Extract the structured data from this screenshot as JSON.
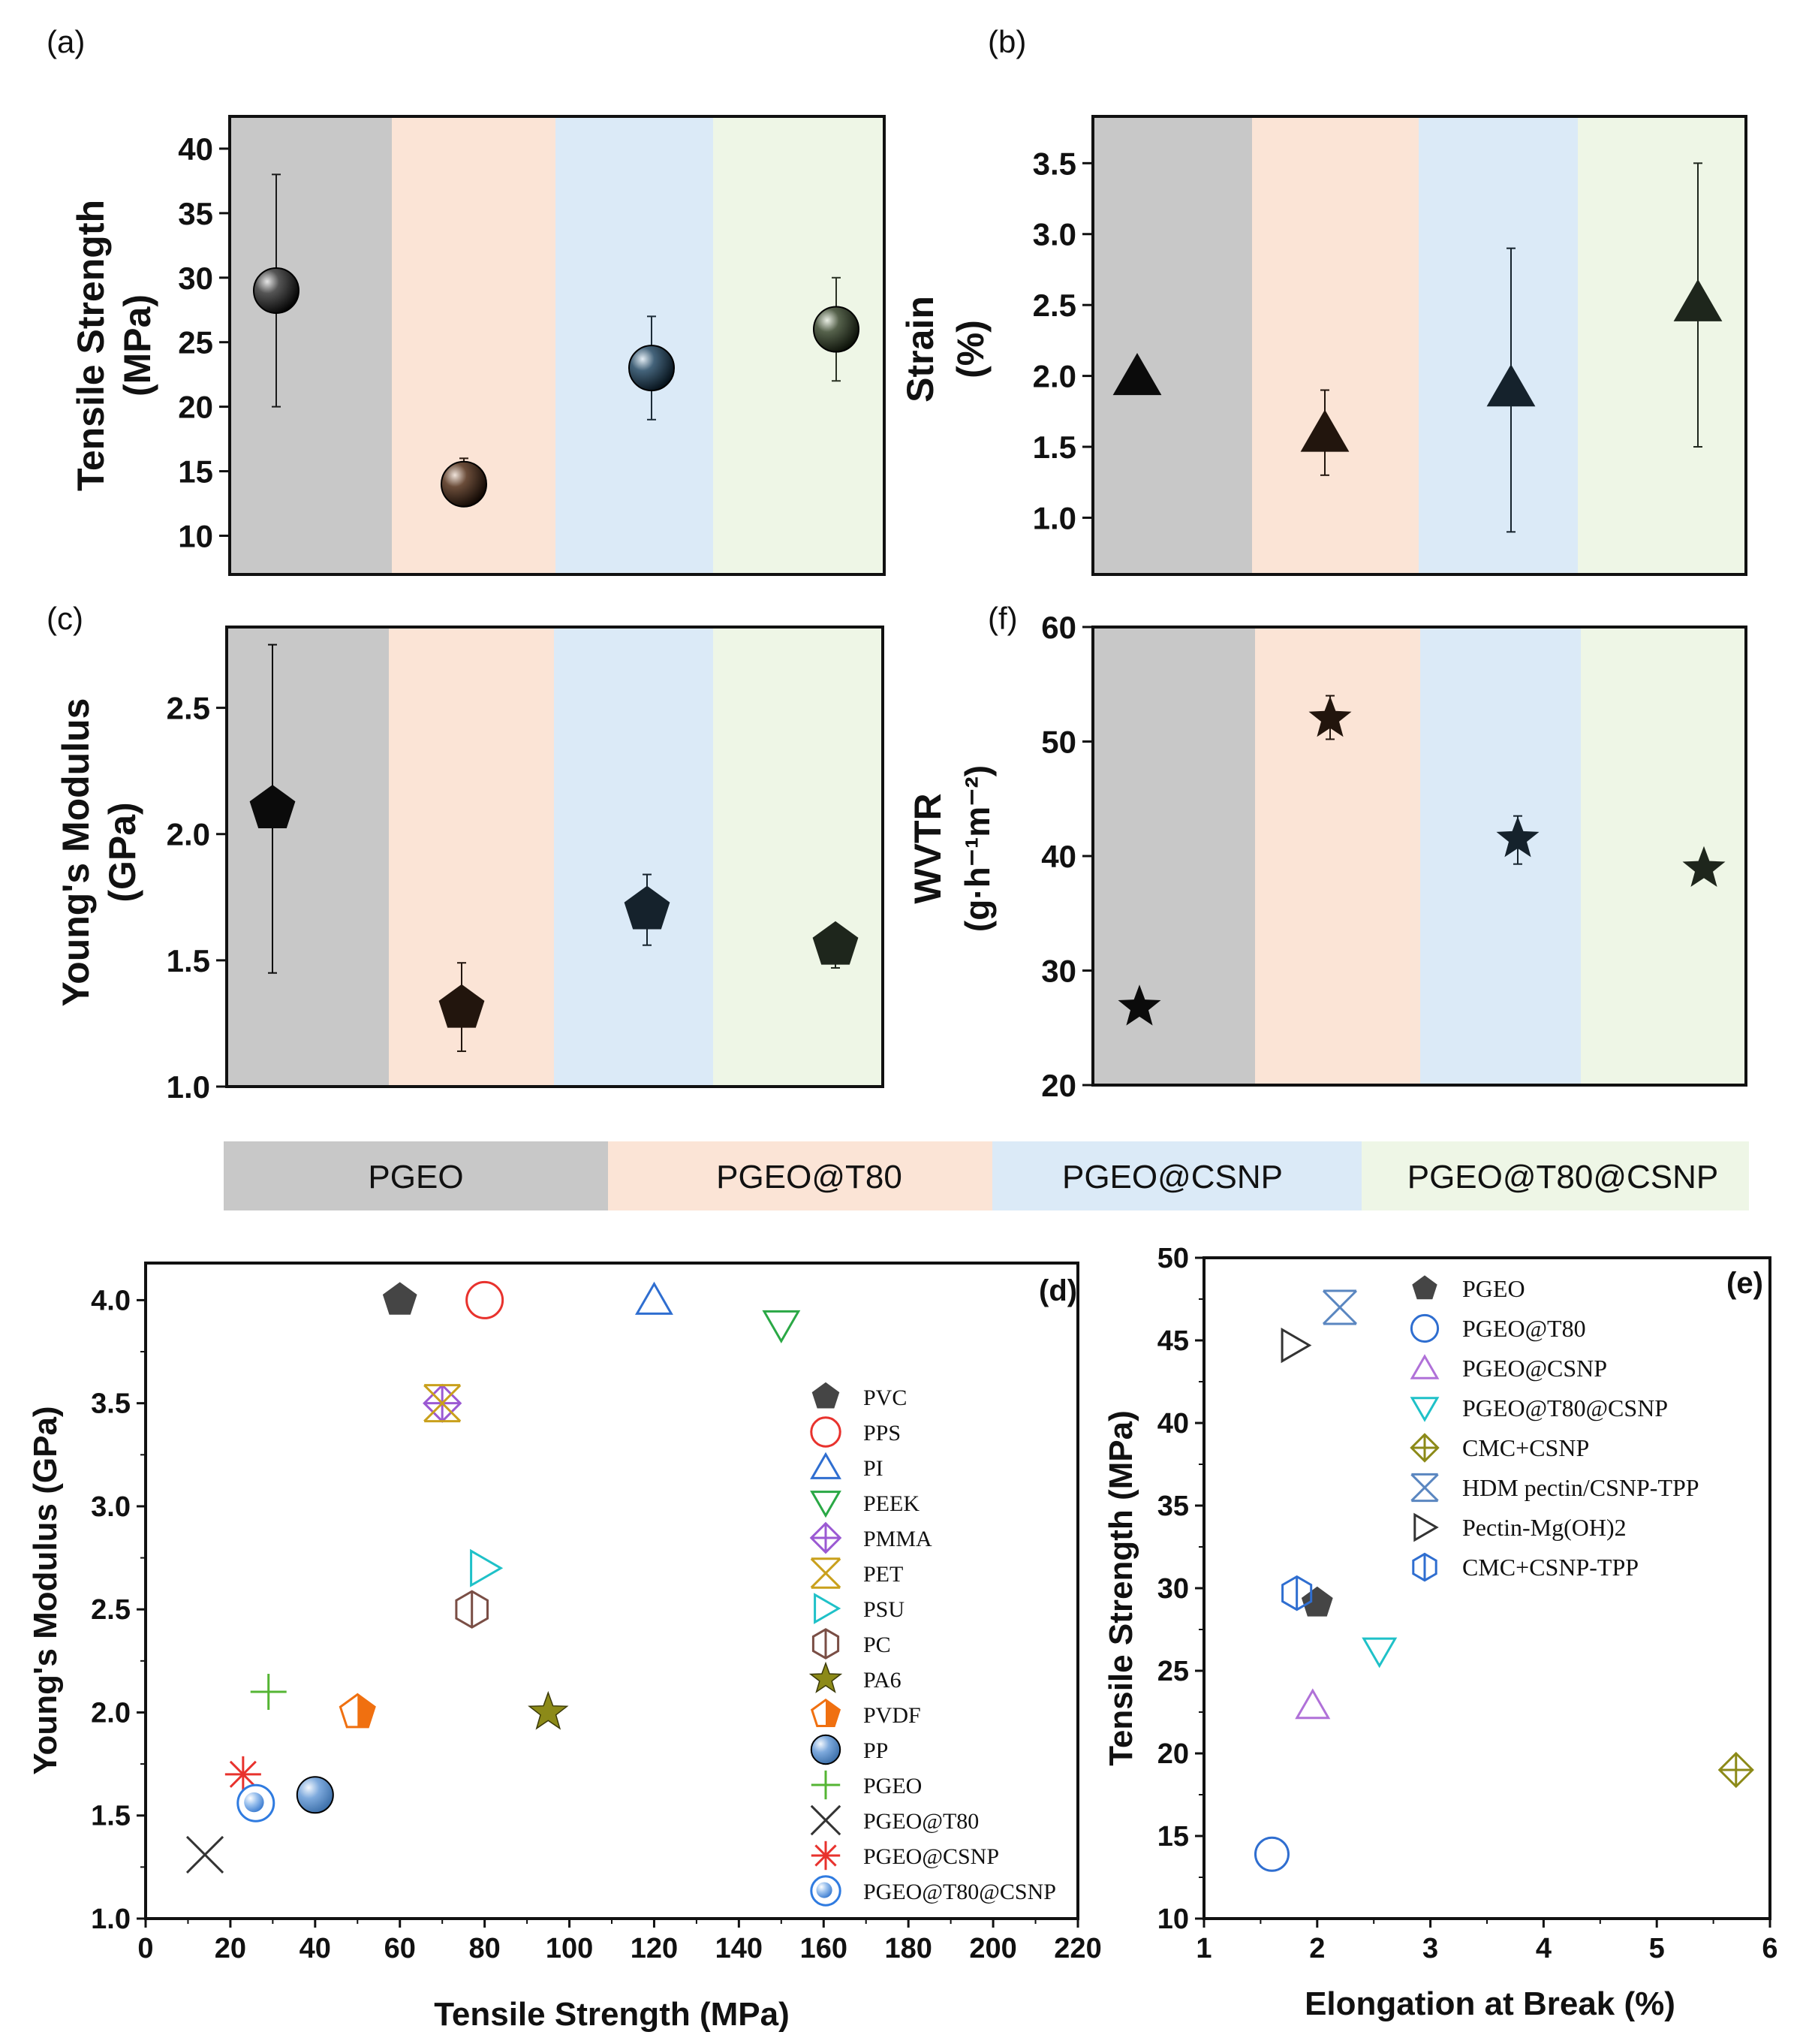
{
  "colors": {
    "band_pgeo": "#c8c8c8",
    "band_t80": "#fbe4d6",
    "band_csnp": "#dbeaf7",
    "band_t80csnp": "#eef6e6"
  },
  "category_bar": {
    "labels": [
      "PGEO",
      "PGEO@T80",
      "PGEO@CSNP",
      "PGEO@T80@CSNP"
    ]
  },
  "chart_data": [
    {
      "id": "a",
      "panel_label": "(a)",
      "type": "scatter",
      "categories": [
        "PGEO",
        "PGEO@T80",
        "PGEO@CSNP",
        "PGEO@T80@CSNP"
      ],
      "ylabel_line1": "Tensile Strength",
      "ylabel_line2": "(MPa)",
      "ylim": [
        7,
        42.5
      ],
      "yticks": [
        10,
        15,
        20,
        25,
        30,
        35,
        40
      ],
      "values": [
        29,
        14,
        23,
        26
      ],
      "error_low": [
        20,
        12.5,
        19,
        22
      ],
      "error_high": [
        38,
        16,
        27,
        30
      ],
      "marker": "sphere",
      "marker_colors": [
        "#1a1a1a",
        "#2a1a10",
        "#1c2c38",
        "#2a3224"
      ]
    },
    {
      "id": "b",
      "panel_label": "(b)",
      "type": "scatter",
      "categories": [
        "PGEO",
        "PGEO@T80",
        "PGEO@CSNP",
        "PGEO@T80@CSNP"
      ],
      "ylabel_line1": "Strain",
      "ylabel_line2": "(%)",
      "ylim": [
        0.6,
        3.83
      ],
      "yticks": [
        1.0,
        1.5,
        2.0,
        2.5,
        3.0,
        3.5
      ],
      "values": [
        2.0,
        1.6,
        1.92,
        2.52
      ],
      "error_low": [
        2.0,
        1.3,
        0.9,
        1.5
      ],
      "error_high": [
        2.0,
        1.9,
        2.9,
        3.5
      ],
      "marker": "triangle",
      "marker_colors": [
        "#0b0b0b",
        "#22150d",
        "#15222c",
        "#1e261c"
      ]
    },
    {
      "id": "c",
      "panel_label": "(c)",
      "type": "scatter",
      "categories": [
        "PGEO",
        "PGEO@T80",
        "PGEO@CSNP",
        "PGEO@T80@CSNP"
      ],
      "ylabel_line1": "Young's Modulus",
      "ylabel_line2": "(GPa)",
      "ylim": [
        1.0,
        2.82
      ],
      "yticks": [
        1.0,
        1.5,
        2.0,
        2.5
      ],
      "values": [
        2.1,
        1.31,
        1.7,
        1.56
      ],
      "error_low": [
        1.45,
        1.14,
        1.56,
        1.47
      ],
      "error_high": [
        2.75,
        1.49,
        1.84,
        1.62
      ],
      "marker": "pentagon",
      "marker_colors": [
        "#0b0b0b",
        "#22150d",
        "#15222c",
        "#1e261c"
      ]
    },
    {
      "id": "f",
      "panel_label": "(f)",
      "type": "scatter",
      "categories": [
        "PGEO",
        "PGEO@T80",
        "PGEO@CSNP",
        "PGEO@T80@CSNP"
      ],
      "ylabel_line1": "WVTR",
      "ylabel_line2": "(g·h⁻¹m⁻²)",
      "ylim": [
        20,
        60
      ],
      "yticks": [
        20,
        30,
        40,
        50,
        60
      ],
      "values": [
        26.8,
        52,
        41.5,
        38.9
      ],
      "error_low": [
        26.8,
        50.2,
        39.3,
        38.9
      ],
      "error_high": [
        26.8,
        54,
        43.5,
        38.9
      ],
      "marker": "star",
      "marker_colors": [
        "#0b0b0b",
        "#22150d",
        "#15222c",
        "#1e261c"
      ]
    },
    {
      "id": "d",
      "panel_label": "(d)",
      "type": "scatter",
      "xlabel": "Tensile Strength (MPa)",
      "ylabel": "Young's Modulus (GPa)",
      "xlim": [
        0,
        220
      ],
      "ylim": [
        1.0,
        4.18
      ],
      "xticks": [
        0,
        20,
        40,
        60,
        80,
        100,
        120,
        140,
        160,
        180,
        200,
        220
      ],
      "yticks": [
        1.0,
        1.5,
        2.0,
        2.5,
        3.0,
        3.5,
        4.0
      ],
      "series": [
        {
          "name": "PVC",
          "x": 60,
          "y": 4.0,
          "marker": "pentagon_fill",
          "color": "#454545"
        },
        {
          "name": "PPS",
          "x": 80,
          "y": 4.0,
          "marker": "circle_open",
          "color": "#e8322d"
        },
        {
          "name": "PI",
          "x": 120,
          "y": 4.0,
          "marker": "triangle_up_open",
          "color": "#2f6ed0"
        },
        {
          "name": "PEEK",
          "x": 150,
          "y": 3.88,
          "marker": "triangle_down_open",
          "color": "#2aa845"
        },
        {
          "name": "PMMA",
          "x": 70,
          "y": 3.5,
          "marker": "diamond_cross",
          "color": "#9b59d3"
        },
        {
          "name": "PET",
          "x": 70,
          "y": 3.5,
          "marker": "x_bar",
          "color": "#c9a01c"
        },
        {
          "name": "PSU",
          "x": 80,
          "y": 2.7,
          "marker": "triangle_right_open",
          "color": "#1fc1c8"
        },
        {
          "name": "PC",
          "x": 77,
          "y": 2.5,
          "marker": "hexagon_open",
          "color": "#7a4e45"
        },
        {
          "name": "PA6",
          "x": 95,
          "y": 2.0,
          "marker": "star_fill",
          "color": "#8c8a18"
        },
        {
          "name": "PVDF",
          "x": 50,
          "y": 2.0,
          "marker": "pentagon_half",
          "color": "#f07010"
        },
        {
          "name": "PP",
          "x": 40,
          "y": 1.6,
          "marker": "sphere",
          "color": "#6e9fd6"
        },
        {
          "name": "PGEO",
          "x": 29,
          "y": 2.1,
          "marker": "plus",
          "color": "#55b534"
        },
        {
          "name": "PGEO@T80",
          "x": 14,
          "y": 1.31,
          "marker": "x",
          "color": "#333333"
        },
        {
          "name": "PGEO@CSNP",
          "x": 23,
          "y": 1.7,
          "marker": "asterisk",
          "color": "#e8322d"
        },
        {
          "name": "PGEO@T80@CSNP",
          "x": 26,
          "y": 1.56,
          "marker": "circle_sphere",
          "color": "#2f7be0"
        }
      ]
    },
    {
      "id": "e",
      "panel_label": "(e)",
      "type": "scatter",
      "xlabel": "Elongation at Break (%)",
      "ylabel": "Tensile Strength (MPa)",
      "xlim": [
        1,
        6
      ],
      "ylim": [
        10,
        50
      ],
      "xticks": [
        1,
        2,
        3,
        4,
        5,
        6
      ],
      "yticks": [
        10,
        15,
        20,
        25,
        30,
        35,
        40,
        45,
        50
      ],
      "series": [
        {
          "name": "PGEO",
          "x": 2.0,
          "y": 29.1,
          "marker": "pentagon_fill",
          "color": "#454545"
        },
        {
          "name": "PGEO@T80",
          "x": 1.6,
          "y": 13.9,
          "marker": "circle_open",
          "color": "#2f6ed0"
        },
        {
          "name": "PGEO@CSNP",
          "x": 1.96,
          "y": 22.9,
          "marker": "triangle_up_open",
          "color": "#b071d8"
        },
        {
          "name": "PGEO@T80@CSNP",
          "x": 2.55,
          "y": 26.2,
          "marker": "triangle_down_open",
          "color": "#1fc1c8"
        },
        {
          "name": "CMC+CSNP",
          "x": 5.7,
          "y": 19.0,
          "marker": "diamond_cross",
          "color": "#8c8a18"
        },
        {
          "name": "HDM pectin/CSNP-TPP",
          "x": 2.2,
          "y": 47.0,
          "marker": "x_bar",
          "color": "#5a86c0"
        },
        {
          "name": "Pectin-Mg(OH)2",
          "x": 1.8,
          "y": 44.7,
          "marker": "triangle_right_open",
          "color": "#333333"
        },
        {
          "name": "CMC+CSNP-TPP",
          "x": 1.82,
          "y": 29.7,
          "marker": "hexagon_open",
          "color": "#2f6ed0"
        }
      ]
    }
  ]
}
